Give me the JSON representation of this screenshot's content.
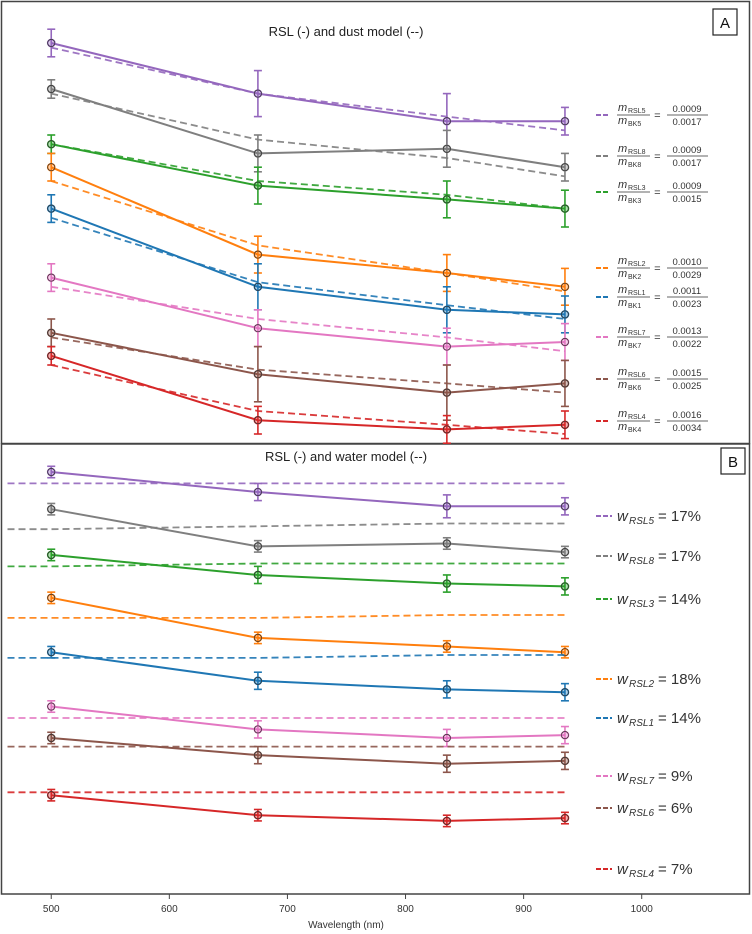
{
  "chart_data": [
    {
      "type": "line",
      "panel_label": "A",
      "title": "RSL (-) and dust model (--)",
      "x": [
        500,
        675,
        835,
        935
      ],
      "series": [
        {
          "name": "RSL5",
          "color": "#9467bd",
          "values": [
            1.0,
            0.89,
            0.83,
            0.83
          ],
          "model": [
            0.99,
            0.89,
            0.84,
            0.81
          ],
          "err": [
            0.03,
            0.05,
            0.06,
            0.03
          ],
          "legend": {
            "num_sym": "m",
            "num_sub": "RSL5",
            "den_sym": "m",
            "den_sub": "BK5",
            "num_val": "0.0009",
            "den_val": "0.0017"
          }
        },
        {
          "name": "RSL8",
          "color": "#7f7f7f",
          "values": [
            0.9,
            0.76,
            0.77,
            0.73
          ],
          "model": [
            0.89,
            0.79,
            0.75,
            0.71
          ],
          "err": [
            0.02,
            0.04,
            0.04,
            0.03
          ],
          "legend": {
            "num_sym": "m",
            "num_sub": "RSL8",
            "den_sym": "m",
            "den_sub": "BK8",
            "num_val": "0.0009",
            "den_val": "0.0017"
          }
        },
        {
          "name": "RSL3",
          "color": "#2ca02c",
          "values": [
            0.78,
            0.69,
            0.66,
            0.64
          ],
          "model": [
            0.78,
            0.7,
            0.67,
            0.64
          ],
          "err": [
            0.02,
            0.04,
            0.04,
            0.04
          ],
          "legend": {
            "num_sym": "m",
            "num_sub": "RSL3",
            "den_sym": "m",
            "den_sub": "BK3",
            "num_val": "0.0009",
            "den_val": "0.0015"
          }
        },
        {
          "name": "RSL2",
          "color": "#ff7f0e",
          "values": [
            0.73,
            0.54,
            0.5,
            0.47
          ],
          "model": [
            0.7,
            0.56,
            0.5,
            0.46
          ],
          "err": [
            0.03,
            0.04,
            0.04,
            0.04
          ],
          "legend": {
            "num_sym": "m",
            "num_sub": "RSL2",
            "den_sym": "m",
            "den_sub": "BK2",
            "num_val": "0.0010",
            "den_val": "0.0029"
          }
        },
        {
          "name": "RSL1",
          "color": "#1f77b4",
          "values": [
            0.64,
            0.47,
            0.42,
            0.41
          ],
          "model": [
            0.62,
            0.48,
            0.43,
            0.4
          ],
          "err": [
            0.03,
            0.05,
            0.05,
            0.04
          ],
          "legend": {
            "num_sym": "m",
            "num_sub": "RSL1",
            "den_sym": "m",
            "den_sub": "BK1",
            "num_val": "0.0011",
            "den_val": "0.0023"
          }
        },
        {
          "name": "RSL7",
          "color": "#e377c2",
          "values": [
            0.49,
            0.38,
            0.34,
            0.35
          ],
          "model": [
            0.47,
            0.4,
            0.36,
            0.33
          ],
          "err": [
            0.03,
            0.04,
            0.04,
            0.04
          ],
          "legend": {
            "num_sym": "m",
            "num_sub": "RSL7",
            "den_sym": "m",
            "den_sub": "BK7",
            "num_val": "0.0013",
            "den_val": "0.0022"
          }
        },
        {
          "name": "RSL6",
          "color": "#8c564b",
          "values": [
            0.37,
            0.28,
            0.24,
            0.26
          ],
          "model": [
            0.36,
            0.29,
            0.26,
            0.24
          ],
          "err": [
            0.03,
            0.06,
            0.06,
            0.05
          ],
          "legend": {
            "num_sym": "m",
            "num_sub": "RSL6",
            "den_sym": "m",
            "den_sub": "BK6",
            "num_val": "0.0015",
            "den_val": "0.0025"
          }
        },
        {
          "name": "RSL4",
          "color": "#d62728",
          "values": [
            0.32,
            0.18,
            0.16,
            0.17
          ],
          "model": [
            0.3,
            0.2,
            0.17,
            0.15
          ],
          "err": [
            0.02,
            0.03,
            0.03,
            0.03
          ],
          "legend": {
            "num_sym": "m",
            "num_sub": "RSL4",
            "den_sym": "m",
            "den_sub": "BK4",
            "num_val": "0.0016",
            "den_val": "0.0034"
          }
        }
      ]
    },
    {
      "type": "line",
      "panel_label": "B",
      "title": "RSL (-) and water model (--)",
      "xlabel": "Wavelength (nm)",
      "xlim": [
        460,
        1090
      ],
      "xticks": [
        500,
        600,
        700,
        800,
        900,
        1000
      ],
      "x": [
        500,
        675,
        835,
        935
      ],
      "series": [
        {
          "name": "RSL5",
          "color": "#9467bd",
          "values": [
            1.0,
            0.93,
            0.88,
            0.88
          ],
          "model": [
            0.96,
            0.96,
            0.96,
            0.96
          ],
          "err": [
            0.02,
            0.03,
            0.04,
            0.03
          ],
          "legend": {
            "sym": "w",
            "sub": "RSL5",
            "val": "= 17%"
          }
        },
        {
          "name": "RSL8",
          "color": "#7f7f7f",
          "values": [
            0.87,
            0.74,
            0.75,
            0.72
          ],
          "model": [
            0.8,
            0.81,
            0.82,
            0.82
          ],
          "err": [
            0.02,
            0.02,
            0.02,
            0.02
          ],
          "legend": {
            "sym": "w",
            "sub": "RSL8",
            "val": "= 17%"
          }
        },
        {
          "name": "RSL3",
          "color": "#2ca02c",
          "values": [
            0.71,
            0.64,
            0.61,
            0.6
          ],
          "model": [
            0.67,
            0.68,
            0.68,
            0.68
          ],
          "err": [
            0.02,
            0.03,
            0.03,
            0.03
          ],
          "legend": {
            "sym": "w",
            "sub": "RSL3",
            "val": "= 14%"
          }
        },
        {
          "name": "RSL2",
          "color": "#ff7f0e",
          "values": [
            0.56,
            0.42,
            0.39,
            0.37
          ],
          "model": [
            0.49,
            0.49,
            0.5,
            0.5
          ],
          "err": [
            0.02,
            0.02,
            0.02,
            0.02
          ],
          "legend": {
            "sym": "w",
            "sub": "RSL2",
            "val": "= 18%"
          }
        },
        {
          "name": "RSL1",
          "color": "#1f77b4",
          "values": [
            0.37,
            0.27,
            0.24,
            0.23
          ],
          "model": [
            0.35,
            0.35,
            0.36,
            0.36
          ],
          "err": [
            0.02,
            0.03,
            0.03,
            0.03
          ],
          "legend": {
            "sym": "w",
            "sub": "RSL1",
            "val": "= 14%"
          }
        },
        {
          "name": "RSL7",
          "color": "#e377c2",
          "values": [
            0.18,
            0.1,
            0.07,
            0.08
          ],
          "model": [
            0.14,
            0.14,
            0.14,
            0.14
          ],
          "err": [
            0.02,
            0.03,
            0.03,
            0.03
          ],
          "legend": {
            "sym": "w",
            "sub": "RSL7",
            "val": "= 9%"
          }
        },
        {
          "name": "RSL6",
          "color": "#8c564b",
          "values": [
            0.07,
            0.01,
            -0.02,
            -0.01
          ],
          "model": [
            0.04,
            0.04,
            0.04,
            0.04
          ],
          "err": [
            0.02,
            0.03,
            0.03,
            0.03
          ],
          "legend": {
            "sym": "w",
            "sub": "RSL6",
            "val": "= 6%"
          }
        },
        {
          "name": "RSL4",
          "color": "#d62728",
          "values": [
            -0.13,
            -0.2,
            -0.22,
            -0.21
          ],
          "model": [
            -0.12,
            -0.12,
            -0.12,
            -0.12
          ],
          "err": [
            0.02,
            0.02,
            0.02,
            0.02
          ],
          "legend": {
            "sym": "w",
            "sub": "RSL4",
            "val": "= 7%"
          }
        }
      ]
    }
  ]
}
